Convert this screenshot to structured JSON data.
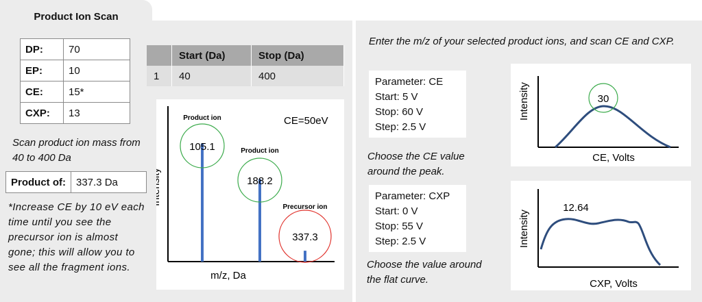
{
  "tab": {
    "title": "Product Ion Scan"
  },
  "params": [
    {
      "key": "DP:",
      "value": "70"
    },
    {
      "key": "EP:",
      "value": "10"
    },
    {
      "key": "CE:",
      "value": "15*"
    },
    {
      "key": "CXP:",
      "value": "13"
    }
  ],
  "range_table": {
    "headers": [
      "",
      "Start (Da)",
      "Stop (Da)"
    ],
    "row": [
      "1",
      "40",
      "400"
    ]
  },
  "scan_note": "Scan product ion mass from 40 to 400 Da",
  "product_of": {
    "key": "Product of:",
    "value": "337.3 Da"
  },
  "increase_note": "*Increase CE by 10 eV each time until you see the precursor ion is almost gone; this will allow you to see all the fragment ions.",
  "spectrum": {
    "ce_label": "CE=50eV",
    "ylabel": "Intensity",
    "xlabel": "m/z, Da",
    "peaks": [
      {
        "name": "Product ion",
        "mz": "105.1",
        "rel_height": 0.76,
        "circle_color": "#3aaa4a"
      },
      {
        "name": "Product ion",
        "mz": "188.2",
        "rel_height": 0.53,
        "circle_color": "#3aaa4a"
      },
      {
        "name": "Precursor ion",
        "mz": "337.3",
        "rel_height": 0.07,
        "circle_color": "#e0302a"
      }
    ],
    "bar_color": "#4472c4"
  },
  "right": {
    "instruction": "Enter the m/z of your selected product ions, and scan CE and CXP.",
    "ce_params": [
      "Parameter: CE",
      "Start: 5 V",
      "Stop: 60 V",
      "Step: 2.5 V"
    ],
    "ce_note": "Choose the CE value around the peak.",
    "cxp_params": [
      "Parameter: CXP",
      "Start: 0 V",
      "Stop: 55 V",
      "Step: 2.5 V"
    ],
    "cxp_note": "Choose the value around the flat curve.",
    "ce_chart": {
      "peak_label": "30",
      "ylabel": "Intensity",
      "xlabel": "CE, Volts",
      "circle_color": "#3aaa4a"
    },
    "cxp_chart": {
      "peak_label": "12.64",
      "ylabel": "Intensity",
      "xlabel": "CXP, Volts"
    },
    "curve_color": "#2e4d7d"
  }
}
